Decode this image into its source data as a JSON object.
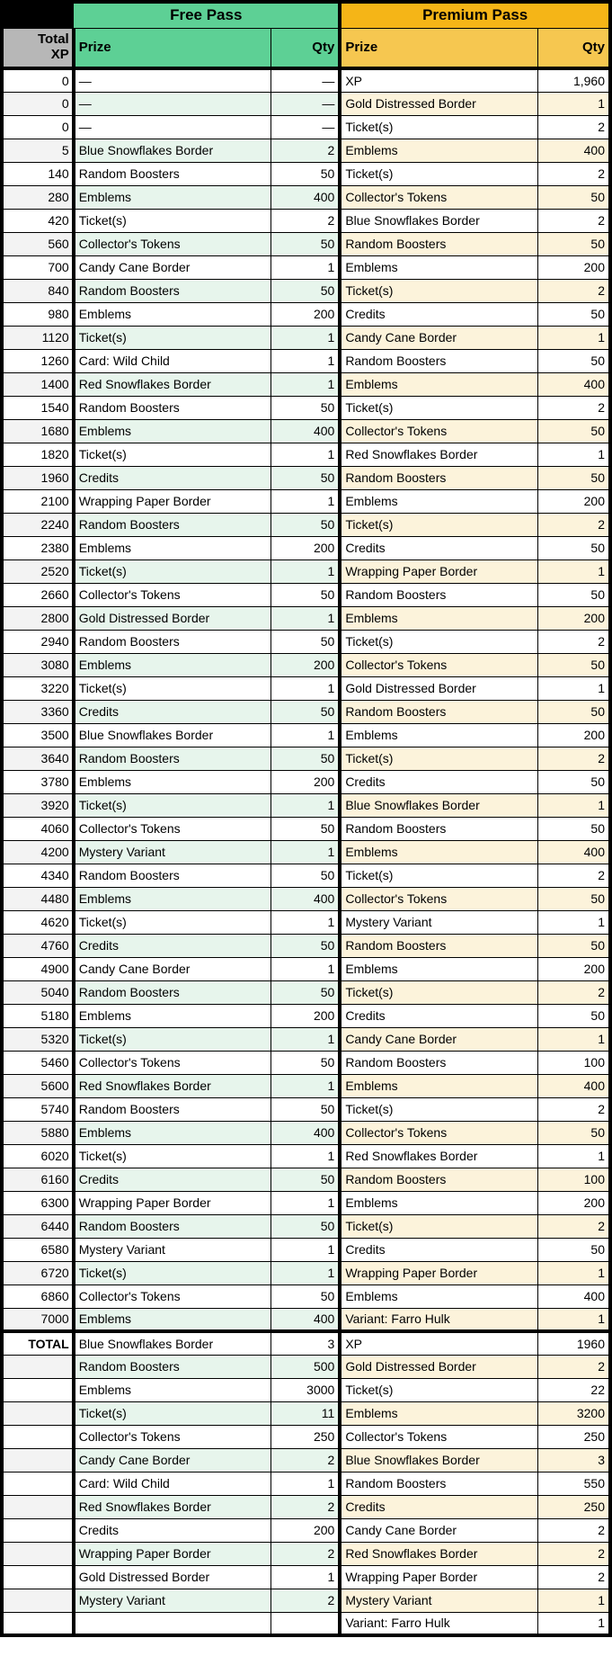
{
  "table": {
    "free_pass_label": "Free Pass",
    "premium_pass_label": "Premium Pass",
    "xp_header": "Total\nXP",
    "free_prize_header": "Prize",
    "free_qty_header": "Qty",
    "premium_prize_header": "Prize",
    "premium_qty_header": "Qty",
    "total_label": "TOTAL"
  },
  "colors": {
    "free_pass_header": "#5DD095",
    "free_row_tint": "#E7F5EC",
    "premium_pass_header_dark": "#F5B517",
    "premium_pass_header_light": "#F6C750",
    "premium_row_tint": "#FCF3DB",
    "xp_header_gray": "#B7B7B7",
    "xp_row_tint": "#F3F3F3",
    "grid_border": "#000000"
  },
  "rows": [
    {
      "xp": "0",
      "fp": "—",
      "fq": "—",
      "pp": "XP",
      "pq": "1,960"
    },
    {
      "xp": "0",
      "fp": "—",
      "fq": "—",
      "pp": "Gold Distressed Border",
      "pq": "1"
    },
    {
      "xp": "0",
      "fp": "—",
      "fq": "—",
      "pp": "Ticket(s)",
      "pq": "2"
    },
    {
      "xp": "5",
      "fp": "Blue Snowflakes Border",
      "fq": "2",
      "pp": "Emblems",
      "pq": "400"
    },
    {
      "xp": "140",
      "fp": "Random Boosters",
      "fq": "50",
      "pp": "Ticket(s)",
      "pq": "2"
    },
    {
      "xp": "280",
      "fp": "Emblems",
      "fq": "400",
      "pp": "Collector's Tokens",
      "pq": "50"
    },
    {
      "xp": "420",
      "fp": "Ticket(s)",
      "fq": "2",
      "pp": "Blue Snowflakes Border",
      "pq": "2"
    },
    {
      "xp": "560",
      "fp": "Collector's Tokens",
      "fq": "50",
      "pp": "Random Boosters",
      "pq": "50"
    },
    {
      "xp": "700",
      "fp": "Candy Cane Border",
      "fq": "1",
      "pp": "Emblems",
      "pq": "200"
    },
    {
      "xp": "840",
      "fp": "Random Boosters",
      "fq": "50",
      "pp": "Ticket(s)",
      "pq": "2"
    },
    {
      "xp": "980",
      "fp": "Emblems",
      "fq": "200",
      "pp": "Credits",
      "pq": "50"
    },
    {
      "xp": "1120",
      "fp": "Ticket(s)",
      "fq": "1",
      "pp": "Candy Cane Border",
      "pq": "1"
    },
    {
      "xp": "1260",
      "fp": "Card: Wild Child",
      "fq": "1",
      "pp": "Random Boosters",
      "pq": "50"
    },
    {
      "xp": "1400",
      "fp": "Red Snowflakes Border",
      "fq": "1",
      "pp": "Emblems",
      "pq": "400"
    },
    {
      "xp": "1540",
      "fp": "Random Boosters",
      "fq": "50",
      "pp": "Ticket(s)",
      "pq": "2"
    },
    {
      "xp": "1680",
      "fp": "Emblems",
      "fq": "400",
      "pp": "Collector's Tokens",
      "pq": "50"
    },
    {
      "xp": "1820",
      "fp": "Ticket(s)",
      "fq": "1",
      "pp": "Red Snowflakes Border",
      "pq": "1"
    },
    {
      "xp": "1960",
      "fp": "Credits",
      "fq": "50",
      "pp": "Random Boosters",
      "pq": "50"
    },
    {
      "xp": "2100",
      "fp": "Wrapping Paper Border",
      "fq": "1",
      "pp": "Emblems",
      "pq": "200"
    },
    {
      "xp": "2240",
      "fp": "Random Boosters",
      "fq": "50",
      "pp": "Ticket(s)",
      "pq": "2"
    },
    {
      "xp": "2380",
      "fp": "Emblems",
      "fq": "200",
      "pp": "Credits",
      "pq": "50"
    },
    {
      "xp": "2520",
      "fp": "Ticket(s)",
      "fq": "1",
      "pp": "Wrapping Paper Border",
      "pq": "1"
    },
    {
      "xp": "2660",
      "fp": "Collector's Tokens",
      "fq": "50",
      "pp": "Random Boosters",
      "pq": "50"
    },
    {
      "xp": "2800",
      "fp": "Gold Distressed Border",
      "fq": "1",
      "pp": "Emblems",
      "pq": "200"
    },
    {
      "xp": "2940",
      "fp": "Random Boosters",
      "fq": "50",
      "pp": "Ticket(s)",
      "pq": "2"
    },
    {
      "xp": "3080",
      "fp": "Emblems",
      "fq": "200",
      "pp": "Collector's Tokens",
      "pq": "50"
    },
    {
      "xp": "3220",
      "fp": "Ticket(s)",
      "fq": "1",
      "pp": "Gold Distressed Border",
      "pq": "1"
    },
    {
      "xp": "3360",
      "fp": "Credits",
      "fq": "50",
      "pp": "Random Boosters",
      "pq": "50"
    },
    {
      "xp": "3500",
      "fp": "Blue Snowflakes Border",
      "fq": "1",
      "pp": "Emblems",
      "pq": "200"
    },
    {
      "xp": "3640",
      "fp": "Random Boosters",
      "fq": "50",
      "pp": "Ticket(s)",
      "pq": "2"
    },
    {
      "xp": "3780",
      "fp": "Emblems",
      "fq": "200",
      "pp": "Credits",
      "pq": "50"
    },
    {
      "xp": "3920",
      "fp": "Ticket(s)",
      "fq": "1",
      "pp": "Blue Snowflakes Border",
      "pq": "1"
    },
    {
      "xp": "4060",
      "fp": "Collector's Tokens",
      "fq": "50",
      "pp": "Random Boosters",
      "pq": "50"
    },
    {
      "xp": "4200",
      "fp": "Mystery Variant",
      "fq": "1",
      "pp": "Emblems",
      "pq": "400"
    },
    {
      "xp": "4340",
      "fp": "Random Boosters",
      "fq": "50",
      "pp": "Ticket(s)",
      "pq": "2"
    },
    {
      "xp": "4480",
      "fp": "Emblems",
      "fq": "400",
      "pp": "Collector's Tokens",
      "pq": "50"
    },
    {
      "xp": "4620",
      "fp": "Ticket(s)",
      "fq": "1",
      "pp": "Mystery Variant",
      "pq": "1"
    },
    {
      "xp": "4760",
      "fp": "Credits",
      "fq": "50",
      "pp": "Random Boosters",
      "pq": "50"
    },
    {
      "xp": "4900",
      "fp": "Candy Cane Border",
      "fq": "1",
      "pp": "Emblems",
      "pq": "200"
    },
    {
      "xp": "5040",
      "fp": "Random Boosters",
      "fq": "50",
      "pp": "Ticket(s)",
      "pq": "2"
    },
    {
      "xp": "5180",
      "fp": "Emblems",
      "fq": "200",
      "pp": "Credits",
      "pq": "50"
    },
    {
      "xp": "5320",
      "fp": "Ticket(s)",
      "fq": "1",
      "pp": "Candy Cane Border",
      "pq": "1"
    },
    {
      "xp": "5460",
      "fp": "Collector's Tokens",
      "fq": "50",
      "pp": "Random Boosters",
      "pq": "100"
    },
    {
      "xp": "5600",
      "fp": "Red Snowflakes Border",
      "fq": "1",
      "pp": "Emblems",
      "pq": "400"
    },
    {
      "xp": "5740",
      "fp": "Random Boosters",
      "fq": "50",
      "pp": "Ticket(s)",
      "pq": "2"
    },
    {
      "xp": "5880",
      "fp": "Emblems",
      "fq": "400",
      "pp": "Collector's Tokens",
      "pq": "50"
    },
    {
      "xp": "6020",
      "fp": "Ticket(s)",
      "fq": "1",
      "pp": "Red Snowflakes Border",
      "pq": "1"
    },
    {
      "xp": "6160",
      "fp": "Credits",
      "fq": "50",
      "pp": "Random Boosters",
      "pq": "100"
    },
    {
      "xp": "6300",
      "fp": "Wrapping Paper Border",
      "fq": "1",
      "pp": "Emblems",
      "pq": "200"
    },
    {
      "xp": "6440",
      "fp": "Random Boosters",
      "fq": "50",
      "pp": "Ticket(s)",
      "pq": "2"
    },
    {
      "xp": "6580",
      "fp": "Mystery Variant",
      "fq": "1",
      "pp": "Credits",
      "pq": "50"
    },
    {
      "xp": "6720",
      "fp": "Ticket(s)",
      "fq": "1",
      "pp": "Wrapping Paper Border",
      "pq": "1"
    },
    {
      "xp": "6860",
      "fp": "Collector's Tokens",
      "fq": "50",
      "pp": "Emblems",
      "pq": "400"
    },
    {
      "xp": "7000",
      "fp": "Emblems",
      "fq": "400",
      "pp": "Variant: Farro Hulk",
      "pq": "1"
    }
  ],
  "total_rows": [
    {
      "xp": "TOTAL",
      "fp": "Blue Snowflakes Border",
      "fq": "3",
      "pp": "XP",
      "pq": "1960"
    },
    {
      "xp": "",
      "fp": "Random Boosters",
      "fq": "500",
      "pp": "Gold Distressed Border",
      "pq": "2"
    },
    {
      "xp": "",
      "fp": "Emblems",
      "fq": "3000",
      "pp": "Ticket(s)",
      "pq": "22"
    },
    {
      "xp": "",
      "fp": "Ticket(s)",
      "fq": "11",
      "pp": "Emblems",
      "pq": "3200"
    },
    {
      "xp": "",
      "fp": "Collector's Tokens",
      "fq": "250",
      "pp": "Collector's Tokens",
      "pq": "250"
    },
    {
      "xp": "",
      "fp": "Candy Cane Border",
      "fq": "2",
      "pp": "Blue Snowflakes Border",
      "pq": "3"
    },
    {
      "xp": "",
      "fp": "Card: Wild Child",
      "fq": "1",
      "pp": "Random Boosters",
      "pq": "550"
    },
    {
      "xp": "",
      "fp": "Red Snowflakes Border",
      "fq": "2",
      "pp": "Credits",
      "pq": "250"
    },
    {
      "xp": "",
      "fp": "Credits",
      "fq": "200",
      "pp": "Candy Cane Border",
      "pq": "2"
    },
    {
      "xp": "",
      "fp": "Wrapping Paper Border",
      "fq": "2",
      "pp": "Red Snowflakes Border",
      "pq": "2"
    },
    {
      "xp": "",
      "fp": "Gold Distressed Border",
      "fq": "1",
      "pp": "Wrapping Paper Border",
      "pq": "2"
    },
    {
      "xp": "",
      "fp": "Mystery Variant",
      "fq": "2",
      "pp": "Mystery Variant",
      "pq": "1"
    },
    {
      "xp": "",
      "fp": "",
      "fq": "",
      "pp": "Variant: Farro Hulk",
      "pq": "1"
    }
  ]
}
